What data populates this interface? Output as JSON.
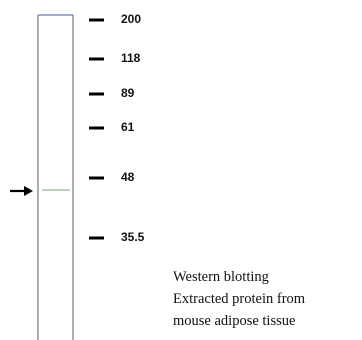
{
  "markers": [
    200,
    118,
    89,
    61,
    48,
    35.5
  ],
  "caption": [
    "Western blotting",
    "Extracted protein from",
    "mouse adipose tissue"
  ]
}
